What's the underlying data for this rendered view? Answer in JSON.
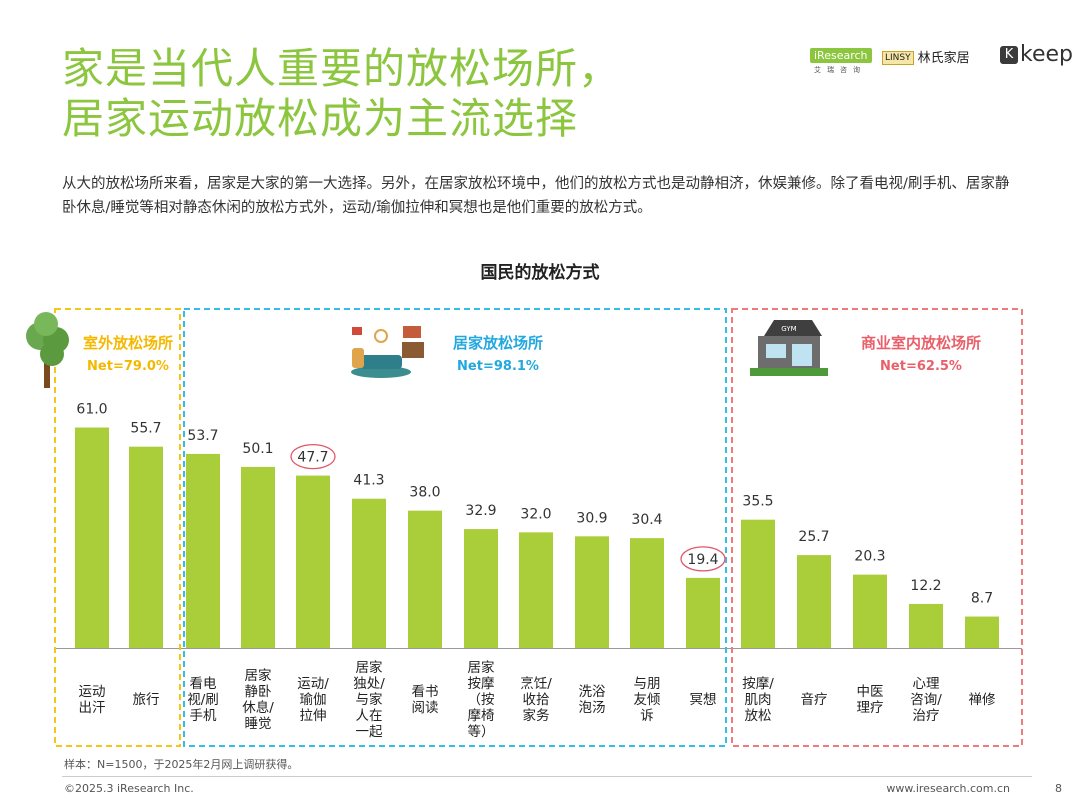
{
  "page": {
    "title_line1": "家是当代人重要的放松场所，",
    "title_line2": "居家运动放松成为主流选择",
    "description": "从大的放松场所来看，居家是大家的第一大选择。另外，在居家放松环境中，他们的放松方式也是动静相济，休娱兼修。除了看电视/刷手机、居家静卧休息/睡觉等相对静态休闲的放松方式外，运动/瑜伽拉伸和冥想也是他们重要的放松方式。",
    "title_color": "#8cc63f"
  },
  "logos": {
    "iresearch": "iResearch",
    "iresearch_sub": "艾瑞咨询",
    "linsy_mark": "LINSY",
    "linsy": "林氏家居",
    "keep_mark": "K",
    "keep": "keep"
  },
  "footer": {
    "note": "样本：N=1500，于2025年2月网上调研获得。",
    "copyright": "©2025.3 iResearch Inc.",
    "url": "www.iresearch.com.cn",
    "page_number": "8"
  },
  "chart_data": {
    "type": "bar",
    "title": "国民的放松方式",
    "xlabel": "",
    "ylabel": "",
    "ylim": [
      0,
      70
    ],
    "bar_color": "#aacd3a",
    "highlight_circle_color": "#e2566a",
    "groups": [
      {
        "name": "室外放松场所",
        "net": "Net=79.0%",
        "border_color": "#f5c518",
        "title_color": "#f5b800",
        "icon": "tree-icon",
        "categories": [
          "运动\n出汗",
          "旅行"
        ],
        "values": [
          61.0,
          55.7
        ],
        "value_labels": [
          "61.0",
          "55.7"
        ],
        "highlighted": [
          false,
          false
        ]
      },
      {
        "name": "居家放松场所",
        "net": "Net=98.1%",
        "border_color": "#34bde6",
        "title_color": "#22a8df",
        "icon": "living-room-icon",
        "categories": [
          "看电\n视/刷\n手机",
          "居家\n静卧\n休息/\n睡觉",
          "运动/\n瑜伽\n拉伸",
          "居家\n独处/\n与家\n人在\n一起",
          "看书\n阅读",
          "居家\n按摩\n（按\n摩椅\n等）",
          "烹饪/\n收拾\n家务",
          "洗浴\n泡汤",
          "与朋\n友倾\n诉",
          "冥想"
        ],
        "values": [
          53.7,
          50.1,
          47.7,
          41.3,
          38.0,
          32.9,
          32.0,
          30.9,
          30.4,
          19.4
        ],
        "value_labels": [
          "53.7",
          "50.1",
          "47.7",
          "41.3",
          "38.0",
          "32.9",
          "32.0",
          "30.9",
          "30.4",
          "19.4"
        ],
        "highlighted": [
          false,
          false,
          true,
          false,
          false,
          false,
          false,
          false,
          false,
          true
        ]
      },
      {
        "name": "商业室内放松场所",
        "net": "Net=62.5%",
        "border_color": "#ef7a7a",
        "title_color": "#e8606a",
        "icon": "gym-building-icon",
        "categories": [
          "按摩/\n肌肉\n放松",
          "音疗",
          "中医\n理疗",
          "心理\n咨询/\n治疗",
          "禅修"
        ],
        "values": [
          35.5,
          25.7,
          20.3,
          12.2,
          8.7
        ],
        "value_labels": [
          "35.5",
          "25.7",
          "20.3",
          "12.2",
          "8.7"
        ],
        "highlighted": [
          false,
          false,
          false,
          false,
          false
        ]
      }
    ]
  }
}
